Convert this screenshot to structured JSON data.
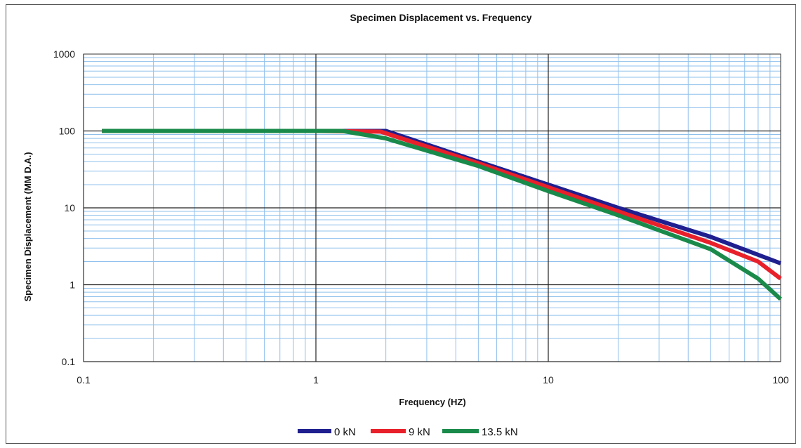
{
  "chart_data": {
    "type": "line",
    "title": "Specimen Displacement vs. Frequency",
    "xlabel": "Frequency (HZ)",
    "ylabel": "Specimen Displacement (MM D.A.)",
    "x_scale": "log",
    "y_scale": "log",
    "xlim": [
      0.1,
      100
    ],
    "ylim": [
      0.1,
      1000
    ],
    "x_ticks": [
      "0.1",
      "1",
      "10",
      "100"
    ],
    "y_ticks": [
      "0.1",
      "1",
      "10",
      "100",
      "1000"
    ],
    "grid": true,
    "legend_position": "bottom",
    "series": [
      {
        "name": "0 kN",
        "color": "#1f1f8f",
        "points": [
          [
            0.12,
            100
          ],
          [
            1.0,
            100
          ],
          [
            2.0,
            100
          ],
          [
            5,
            40
          ],
          [
            10,
            20
          ],
          [
            20,
            10
          ],
          [
            50,
            4.2
          ],
          [
            100,
            1.9
          ]
        ]
      },
      {
        "name": "9 kN",
        "color": "#e8202a",
        "points": [
          [
            0.12,
            100
          ],
          [
            1.0,
            100
          ],
          [
            1.9,
            98
          ],
          [
            5,
            38
          ],
          [
            10,
            18.5
          ],
          [
            20,
            9
          ],
          [
            50,
            3.5
          ],
          [
            80,
            2.0
          ],
          [
            100,
            1.2
          ]
        ]
      },
      {
        "name": "13.5 kN",
        "color": "#1a8a4a",
        "points": [
          [
            0.12,
            100
          ],
          [
            1.0,
            100
          ],
          [
            1.3,
            100
          ],
          [
            2,
            80
          ],
          [
            5,
            35
          ],
          [
            10,
            16.5
          ],
          [
            20,
            8
          ],
          [
            50,
            2.9
          ],
          [
            80,
            1.2
          ],
          [
            100,
            0.65
          ]
        ]
      }
    ]
  }
}
